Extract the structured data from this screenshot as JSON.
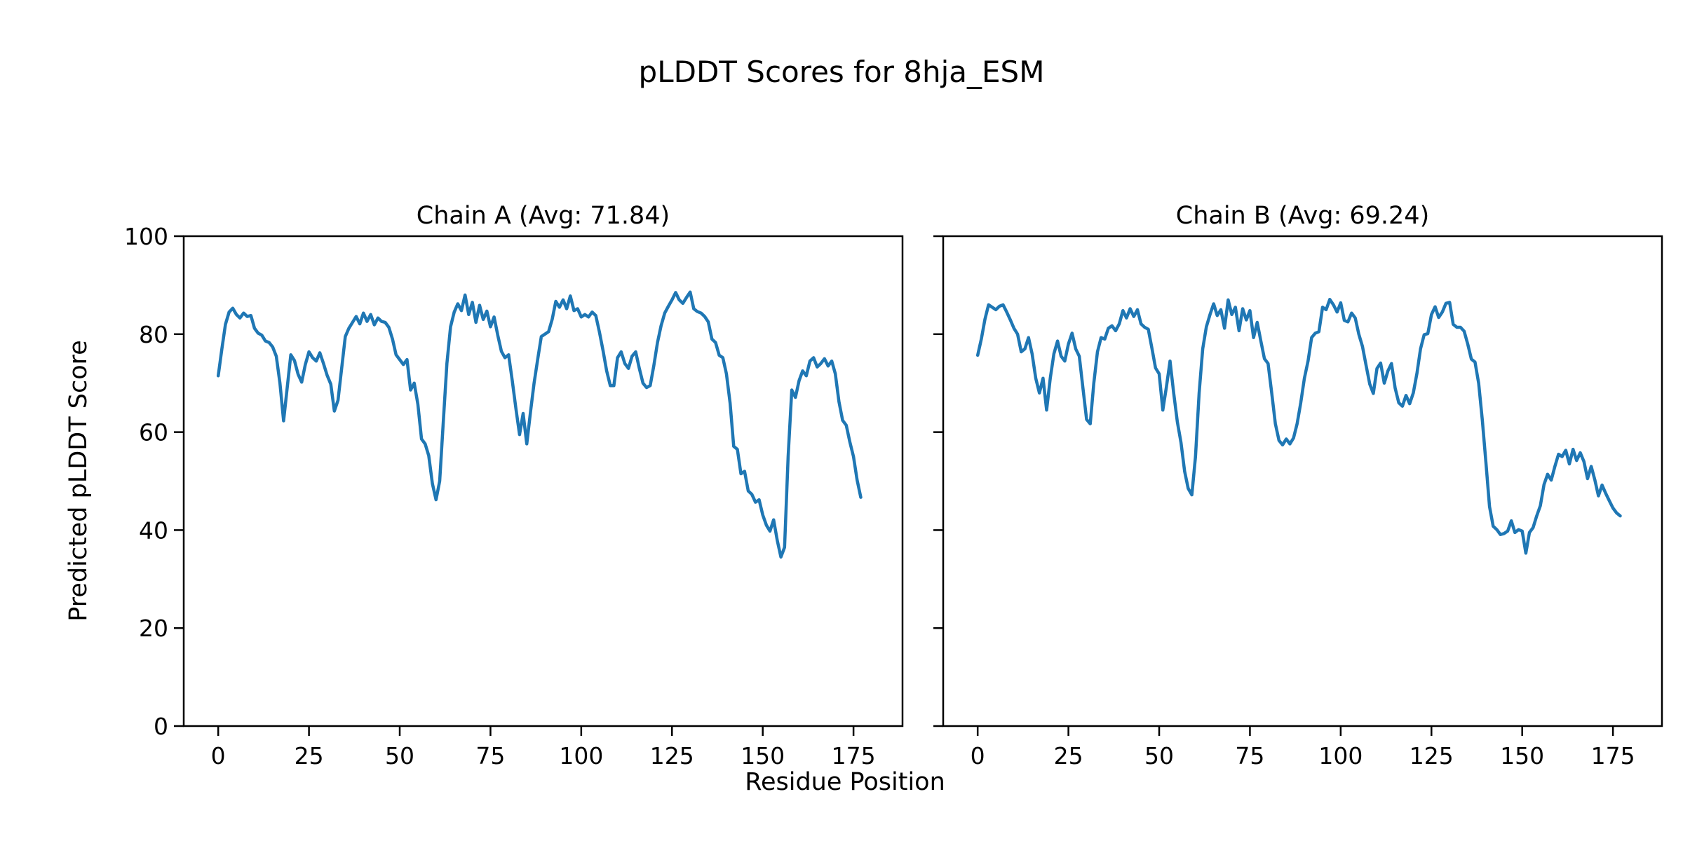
{
  "figure": {
    "suptitle": "pLDDT Scores for 8hja_ESM",
    "xlabel": "Residue Position",
    "ylabel": "Predicted pLDDT Score",
    "background_color": "#ffffff",
    "line_color": "#1f77b4",
    "spine_color": "#000000",
    "text_color": "#000000"
  },
  "chart_data": [
    {
      "type": "line",
      "title": "Chain A (Avg: 71.84)",
      "chain": "A",
      "average_plddt": 71.84,
      "xlabel_shared": "Residue Position",
      "ylabel_shared": "Predicted pLDDT Score",
      "xlim": [
        -9.5,
        188.5
      ],
      "ylim": [
        0,
        100
      ],
      "xticks": [
        0,
        25,
        50,
        75,
        100,
        125,
        150,
        175
      ],
      "yticks": [
        0,
        20,
        40,
        60,
        80,
        100
      ],
      "show_y_tick_labels": true,
      "grid": false,
      "legend": "none",
      "x_start": 0,
      "x_step": 1,
      "values": [
        71.5,
        77,
        82,
        84.5,
        85.3,
        84,
        83.3,
        84.3,
        83.6,
        83.8,
        81.2,
        80.2,
        79.8,
        78.6,
        78.3,
        77.4,
        75.5,
        70,
        62.3,
        69,
        75.8,
        74.6,
        71.8,
        70.2,
        73.8,
        76.4,
        75.2,
        74.5,
        76.2,
        74,
        71.6,
        69.8,
        64.3,
        66.5,
        73,
        79.5,
        81.2,
        82.4,
        83.6,
        82.1,
        84.3,
        82.6,
        84,
        81.9,
        83.3,
        82.6,
        82.4,
        81.4,
        79,
        75.8,
        74.8,
        73.8,
        74.8,
        68.6,
        70,
        65.7,
        58.6,
        57.6,
        55.2,
        49.5,
        46.2,
        50,
        62,
        74,
        81.5,
        84.5,
        86.2,
        84.8,
        88,
        84,
        86.5,
        82.4,
        85.9,
        83,
        84.7,
        81.5,
        83.5,
        79.8,
        76.5,
        75.2,
        75.8,
        70.5,
        64.8,
        59.5,
        63.8,
        57.6,
        64,
        70,
        74.8,
        79.5,
        80,
        80.5,
        83,
        86.7,
        85.5,
        87,
        85.2,
        87.8,
        84.8,
        85.2,
        83.5,
        84,
        83.5,
        84.5,
        83.8,
        80.5,
        76.7,
        72.5,
        69.5,
        69.5,
        75.2,
        76.4,
        74,
        73,
        75.5,
        76.4,
        73,
        70,
        69.1,
        69.5,
        73.6,
        78.3,
        81.7,
        84.3,
        85.7,
        87,
        88.5,
        87,
        86.3,
        87.5,
        88.6,
        85.2,
        84.6,
        84.3,
        83.6,
        82.5,
        79,
        78.3,
        75.7,
        75.2,
        71.9,
        66,
        57.1,
        56.5,
        51.5,
        52,
        48,
        47.3,
        45.7,
        46.2,
        43.1,
        41,
        39.8,
        42.1,
        37.9,
        34.5,
        36.5,
        55,
        68.6,
        67.1,
        70.5,
        72.5,
        71.5,
        74.5,
        75.2,
        73.3,
        74,
        75,
        73.5,
        74.5,
        71.9,
        66.2,
        62.4,
        61.4,
        58,
        55,
        50.2,
        46.7
      ]
    },
    {
      "type": "line",
      "title": "Chain B (Avg: 69.24)",
      "chain": "B",
      "average_plddt": 69.24,
      "xlabel_shared": "Residue Position",
      "ylabel_shared": "Predicted pLDDT Score",
      "xlim": [
        -9.5,
        188.5
      ],
      "ylim": [
        0,
        100
      ],
      "xticks": [
        0,
        25,
        50,
        75,
        100,
        125,
        150,
        175
      ],
      "yticks": [
        0,
        20,
        40,
        60,
        80,
        100
      ],
      "show_y_tick_labels": false,
      "grid": false,
      "legend": "none",
      "x_start": 0,
      "x_step": 1,
      "values": [
        75.7,
        79,
        83,
        86,
        85.5,
        85,
        85.7,
        86,
        84.5,
        82.9,
        81.2,
        80,
        76.4,
        77,
        79.3,
        76,
        71,
        68,
        71,
        64.5,
        71,
        76,
        78.6,
        75.5,
        74.5,
        78,
        80.2,
        77,
        75.5,
        69,
        62.6,
        61.7,
        70,
        76.4,
        79.3,
        79,
        81.2,
        81.7,
        80.7,
        82.1,
        84.8,
        83.3,
        85.2,
        83.6,
        85,
        82.1,
        81.4,
        81,
        77.1,
        73.1,
        71.9,
        64.5,
        69.3,
        74.5,
        68,
        62.1,
        57.9,
        52,
        48.5,
        47.2,
        55,
        68,
        77,
        81.5,
        84,
        86.2,
        83.8,
        85,
        81.2,
        87,
        84,
        85.5,
        80.7,
        85.2,
        82.9,
        84.8,
        79.3,
        82.4,
        78.6,
        75,
        74,
        68,
        61.7,
        58.3,
        57.4,
        58.6,
        57.6,
        58.8,
        61.7,
        66,
        71,
        74.5,
        79.3,
        80.2,
        80.5,
        85.5,
        85,
        87.1,
        86,
        84.5,
        86.4,
        82.8,
        82.5,
        84.3,
        83.3,
        80,
        77.5,
        73.6,
        69.8,
        67.9,
        73,
        74.1,
        70,
        72.5,
        74,
        69,
        66,
        65.3,
        67.5,
        65.8,
        68,
        72,
        77,
        79.9,
        80.1,
        84,
        85.6,
        83.4,
        84.5,
        86.3,
        86.5,
        82,
        81.4,
        81.4,
        80.6,
        78,
        74.9,
        74.3,
        70,
        62.5,
        53.9,
        44.8,
        40.8,
        40.1,
        39.1,
        39.3,
        39.8,
        41.9,
        39.5,
        40.1,
        39.8,
        35.3,
        39.5,
        40.5,
        42.9,
        45,
        49.3,
        51.4,
        50.2,
        53,
        55.5,
        55,
        56.3,
        53.5,
        56.5,
        54.2,
        55.8,
        54,
        50.5,
        53,
        50.3,
        47,
        49.2,
        47.5,
        46,
        44.5,
        43.5,
        42.9
      ]
    }
  ]
}
